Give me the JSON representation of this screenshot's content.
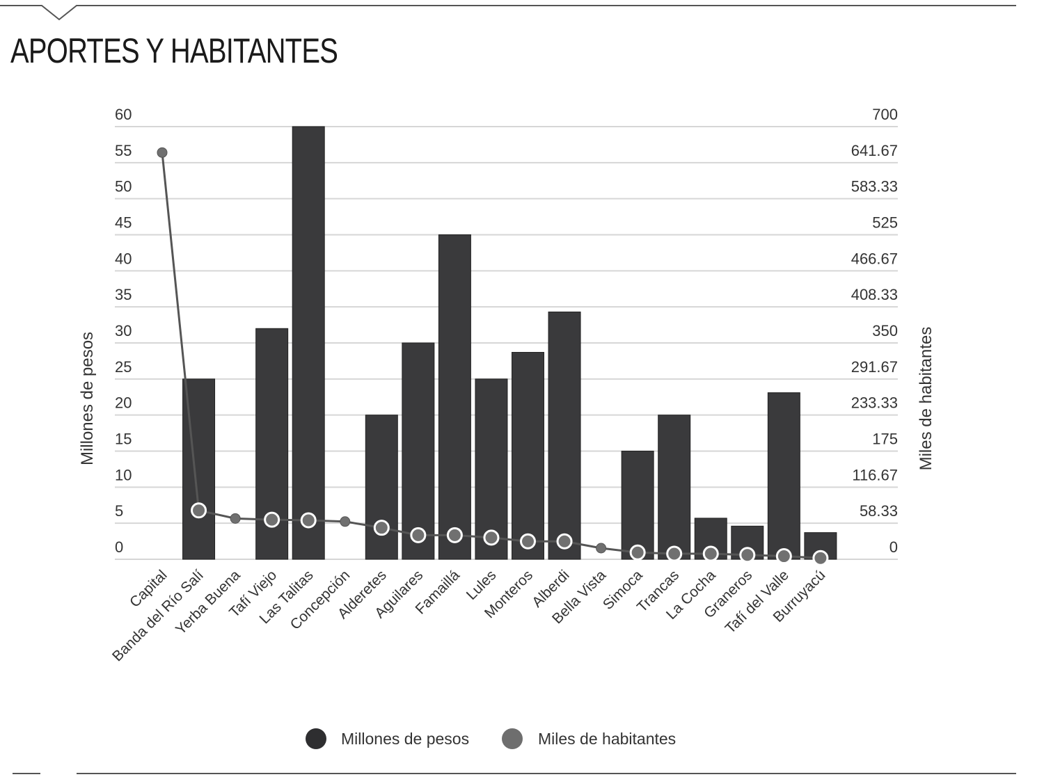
{
  "title": "APORTES Y HABITANTES",
  "chart_data": {
    "type": "bar",
    "categories": [
      "Capital",
      "Banda del Río Salí",
      "Yerba Buena",
      "Tafí Viejo",
      "Las Talitas",
      "Concepción",
      "Alderetes",
      "Aguilares",
      "Famaillá",
      "Lules",
      "Monteros",
      "Alberdi",
      "Bella Vista",
      "Simoca",
      "Trancas",
      "La Cocha",
      "Graneros",
      "Tafí del Valle",
      "Burruyacú"
    ],
    "series": [
      {
        "name": "Millones de pesos",
        "type": "bar",
        "axis": "left",
        "color": "#3a3a3c",
        "values": [
          0,
          25,
          0,
          32,
          60,
          0,
          20,
          30,
          45,
          25,
          28.7,
          34.3,
          0,
          15,
          20,
          5.7,
          4.6,
          23.1,
          3.7
        ]
      },
      {
        "name": "Miles de habitantes",
        "type": "line",
        "axis": "right",
        "color": "#707070",
        "values": [
          658,
          79,
          66,
          64,
          63,
          61,
          51,
          39,
          39,
          35,
          29,
          29,
          18,
          11,
          9,
          9,
          7,
          5,
          2
        ]
      }
    ],
    "ylabel": "Millones de pesos",
    "y2label": "Miles de habitantes",
    "ylim": [
      0,
      60
    ],
    "y2lim": [
      0,
      700
    ],
    "yticks": [
      "0",
      "5",
      "10",
      "15",
      "20",
      "25",
      "30",
      "35",
      "40",
      "45",
      "50",
      "55",
      "60"
    ],
    "y2ticks": [
      "0",
      "58.33",
      "116.67",
      "175",
      "233.33",
      "291.67",
      "350",
      "408.33",
      "466.67",
      "525",
      "583.33",
      "641.67",
      "700"
    ],
    "grid": true,
    "legend_position": "bottom"
  }
}
